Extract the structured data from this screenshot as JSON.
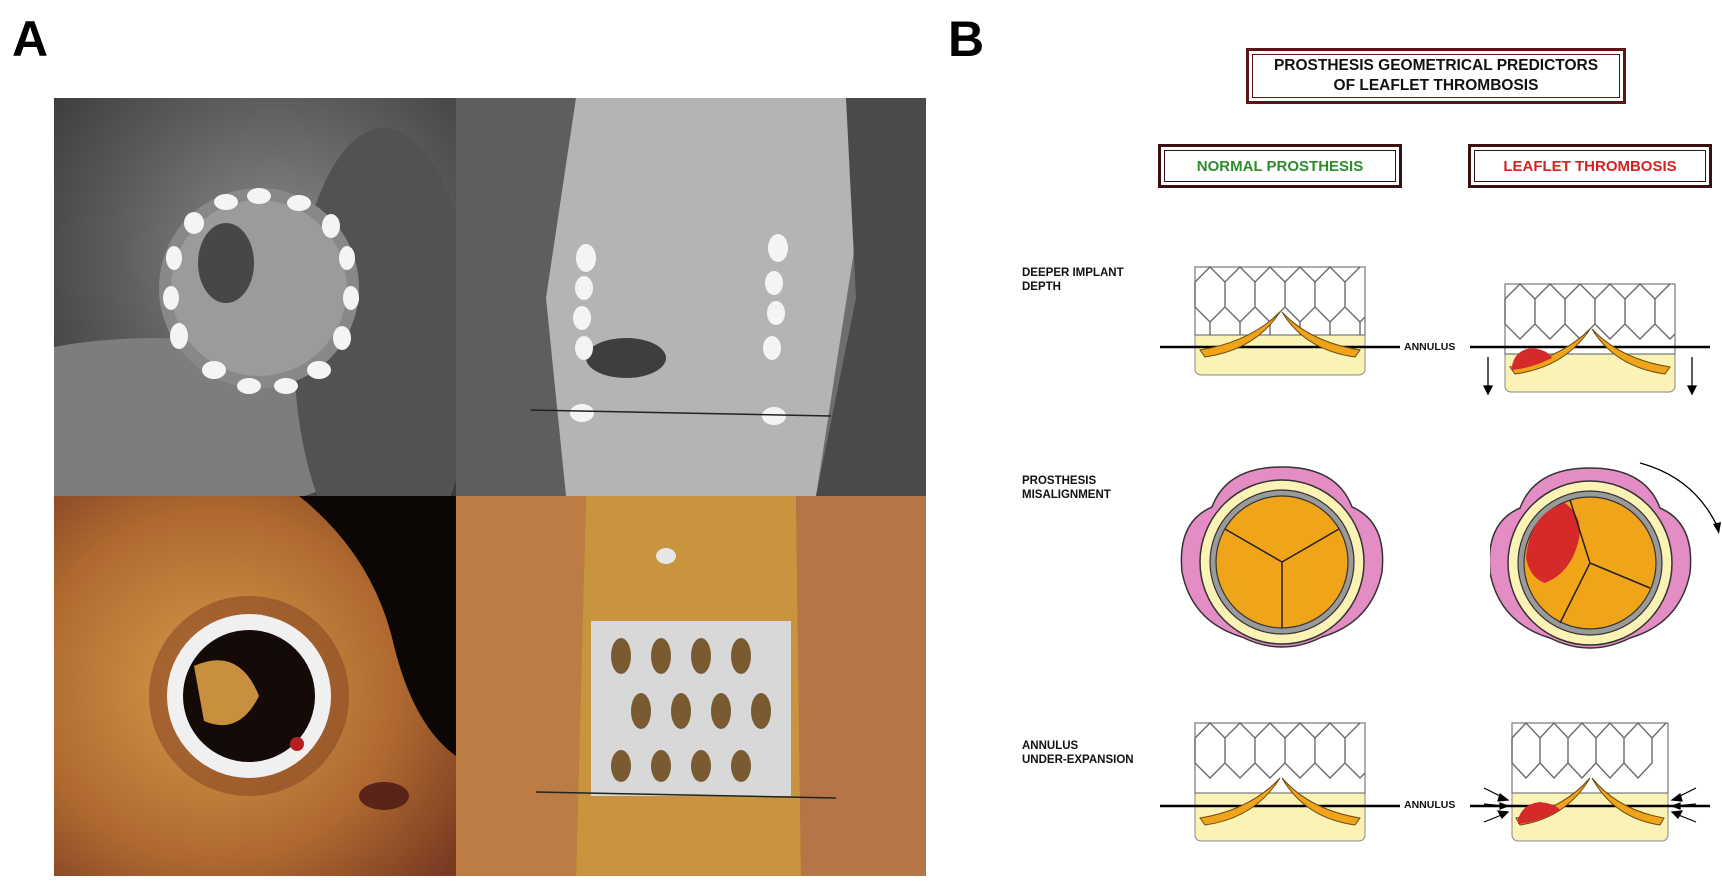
{
  "panels": {
    "a": "A",
    "b": "B"
  },
  "title": "PROSTHESIS GEOMETRICAL PREDICTORS\nOF LEAFLET THROMBOSIS",
  "columns": {
    "normal": "NORMAL PROSTHESIS",
    "thrombosis": "LEAFLET THROMBOSIS"
  },
  "rows": [
    {
      "label": "DEEPER IMPLANT\nDEPTH"
    },
    {
      "label": "PROSTHESIS\nMISALIGNMENT"
    },
    {
      "label": "ANNULUS\nUNDER-EXPANSION"
    }
  ],
  "annulus_label": "ANNULUS",
  "colors": {
    "thrombus": "#d62a2a",
    "leaflet": "#f0a419",
    "skirt": "#fbf2b6",
    "sinus": "#e48cc4",
    "normal_header": "#2e8b2e",
    "thrombosis_header": "#d42222",
    "box_border": "#5e1414"
  }
}
